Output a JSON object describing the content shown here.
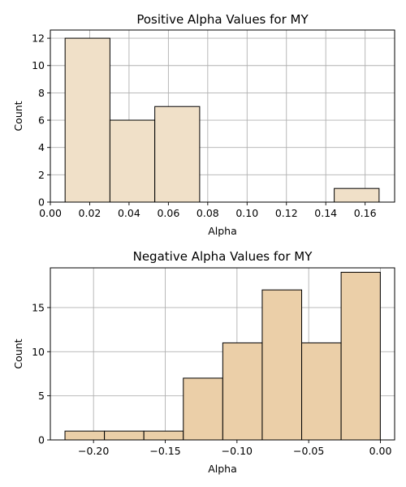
{
  "chart_data": [
    {
      "type": "bar",
      "title": "Positive Alpha Values for MY",
      "xlabel": "Alpha",
      "ylabel": "Count",
      "bin_edges": [
        0.0075,
        0.0303,
        0.0531,
        0.0759,
        0.0987,
        0.1215,
        0.1443,
        0.1671
      ],
      "values": [
        12,
        6,
        7,
        0,
        0,
        0,
        1
      ],
      "xlim": [
        0.0,
        0.175
      ],
      "ylim": [
        0,
        12.6
      ],
      "xticks": [
        0.0,
        0.02,
        0.04,
        0.06,
        0.08,
        0.1,
        0.12,
        0.14,
        0.16
      ],
      "xtick_labels": [
        "0.00",
        "0.02",
        "0.04",
        "0.06",
        "0.08",
        "0.10",
        "0.12",
        "0.14",
        "0.16"
      ],
      "yticks": [
        0,
        2,
        4,
        6,
        8,
        10,
        12
      ],
      "ytick_labels": [
        "0",
        "2",
        "4",
        "6",
        "8",
        "10",
        "12"
      ],
      "grid": true,
      "bar_color": "#f0e0c8",
      "edge_color": "#000000"
    },
    {
      "type": "bar",
      "title": "Negative Alpha Values for MY",
      "xlabel": "Alpha",
      "ylabel": "Count",
      "bin_edges": [
        -0.2199,
        -0.1924,
        -0.1649,
        -0.1374,
        -0.1099,
        -0.0824,
        -0.0549,
        -0.0274,
        -0.0001
      ],
      "values": [
        1,
        1,
        1,
        7,
        11,
        17,
        11,
        19
      ],
      "xlim": [
        -0.2301,
        0.0099
      ],
      "ylim": [
        0,
        19.5
      ],
      "xticks": [
        -0.2,
        -0.15,
        -0.1,
        -0.05,
        0.0
      ],
      "xtick_labels": [
        "−0.20",
        "−0.15",
        "−0.10",
        "−0.05",
        "0.00"
      ],
      "yticks": [
        0,
        5,
        10,
        15
      ],
      "ytick_labels": [
        "0",
        "5",
        "10",
        "15"
      ],
      "grid": true,
      "bar_color": "#ebcfa8",
      "edge_color": "#000000"
    }
  ]
}
